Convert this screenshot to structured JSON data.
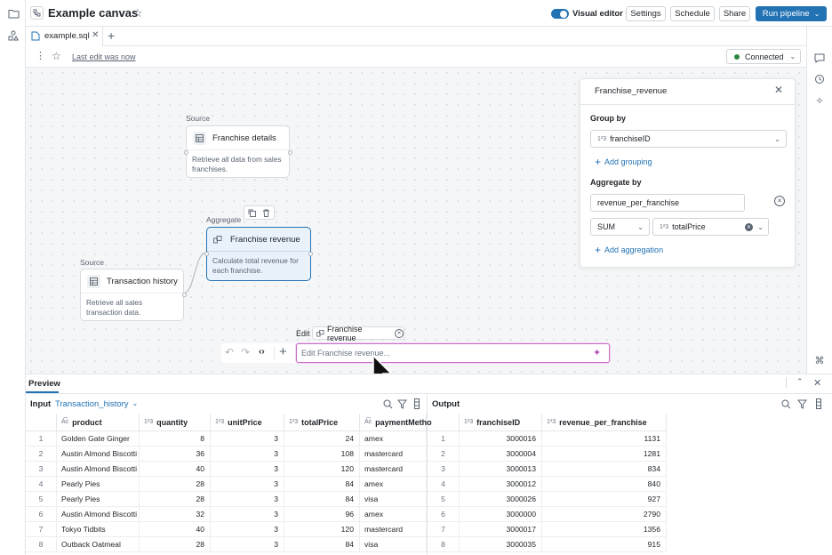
{
  "header": {
    "title": "Example canvas",
    "visual_editor_label": "Visual editor",
    "buttons": {
      "settings": "Settings",
      "schedule": "Schedule",
      "share": "Share",
      "run": "Run pipeline"
    }
  },
  "tabs": [
    {
      "label": "example.sql"
    }
  ],
  "toolbar": {
    "last_edit": "Last edit was now",
    "status": "Connected",
    "status_color": "#2e8540"
  },
  "canvas": {
    "nodes": {
      "franchise_details": {
        "category": "Source",
        "title": "Franchise details",
        "description": "Retrieve all data from sales franchises."
      },
      "franchise_revenue": {
        "category": "Aggregate",
        "title": "Franchise revenue",
        "description": "Calculate total revenue for each franchise."
      },
      "transaction_history": {
        "category": "Source",
        "title": "Transaction history",
        "description": "Retrieve all sales transaction data."
      }
    }
  },
  "config_panel": {
    "title": "Franchise_revenue",
    "group_by_label": "Group by",
    "group_by_value": "franchiseID",
    "add_grouping": "Add grouping",
    "aggregate_by_label": "Aggregate by",
    "aggregate_name": "revenue_per_franchise",
    "agg_function": "SUM",
    "agg_column": "totalPrice",
    "add_aggregation": "Add aggregation"
  },
  "edit_bar": {
    "label": "Edit",
    "chip": "Franchise revenue",
    "placeholder": "Edit Franchise revenue..."
  },
  "preview": {
    "title": "Preview",
    "input": {
      "label": "Input",
      "source": "Transaction_history",
      "columns": [
        "product",
        "quantity",
        "unitPrice",
        "totalPrice",
        "paymentMetho"
      ],
      "rows": [
        [
          "1",
          "Golden Gate Ginger",
          "8",
          "3",
          "24",
          "amex"
        ],
        [
          "2",
          "Austin Almond Biscotti",
          "36",
          "3",
          "108",
          "mastercard"
        ],
        [
          "3",
          "Austin Almond Biscotti",
          "40",
          "3",
          "120",
          "mastercard"
        ],
        [
          "4",
          "Pearly Pies",
          "28",
          "3",
          "84",
          "amex"
        ],
        [
          "5",
          "Pearly Pies",
          "28",
          "3",
          "84",
          "visa"
        ],
        [
          "6",
          "Austin Almond Biscotti",
          "32",
          "3",
          "96",
          "amex"
        ],
        [
          "7",
          "Tokyo Tidbits",
          "40",
          "3",
          "120",
          "mastercard"
        ],
        [
          "8",
          "Outback Oatmeal",
          "28",
          "3",
          "84",
          "visa"
        ]
      ]
    },
    "output": {
      "label": "Output",
      "columns": [
        "franchiseID",
        "revenue_per_franchise"
      ],
      "rows": [
        [
          "1",
          "3000016",
          "1131"
        ],
        [
          "2",
          "3000004",
          "1281"
        ],
        [
          "3",
          "3000013",
          "834"
        ],
        [
          "4",
          "3000012",
          "840"
        ],
        [
          "5",
          "3000026",
          "927"
        ],
        [
          "6",
          "3000000",
          "2790"
        ],
        [
          "7",
          "3000017",
          "1356"
        ],
        [
          "8",
          "3000035",
          "915"
        ]
      ]
    }
  }
}
